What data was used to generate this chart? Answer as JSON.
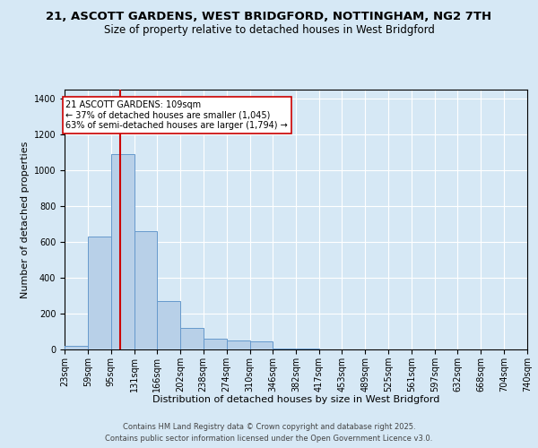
{
  "title_line1": "21, ASCOTT GARDENS, WEST BRIDGFORD, NOTTINGHAM, NG2 7TH",
  "title_line2": "Size of property relative to detached houses in West Bridgford",
  "xlabel": "Distribution of detached houses by size in West Bridgford",
  "ylabel": "Number of detached properties",
  "footnote1": "Contains HM Land Registry data © Crown copyright and database right 2025.",
  "footnote2": "Contains public sector information licensed under the Open Government Licence v3.0.",
  "bar_edges": [
    23,
    59,
    95,
    131,
    166,
    202,
    238,
    274,
    310,
    346,
    382,
    417,
    453,
    489,
    525,
    561,
    597,
    632,
    668,
    704,
    740
  ],
  "bar_heights": [
    20,
    630,
    1090,
    660,
    270,
    120,
    60,
    50,
    45,
    5,
    3,
    2,
    1,
    1,
    0,
    0,
    0,
    0,
    0,
    0
  ],
  "bar_color": "#b8d0e8",
  "bar_edge_color": "#6699cc",
  "property_size": 109,
  "red_line_color": "#cc0000",
  "annotation_text": "21 ASCOTT GARDENS: 109sqm\n← 37% of detached houses are smaller (1,045)\n63% of semi-detached houses are larger (1,794) →",
  "annotation_box_facecolor": "#ffffff",
  "annotation_box_edgecolor": "#cc0000",
  "background_color": "#d6e8f5",
  "plot_bg_color": "#d6e8f5",
  "ylim": [
    0,
    1450
  ],
  "yticks": [
    0,
    200,
    400,
    600,
    800,
    1000,
    1200,
    1400
  ],
  "grid_color": "#ffffff",
  "title_fontsize": 9.5,
  "subtitle_fontsize": 8.5,
  "axis_label_fontsize": 8,
  "tick_fontsize": 7,
  "footnote_fontsize": 6
}
